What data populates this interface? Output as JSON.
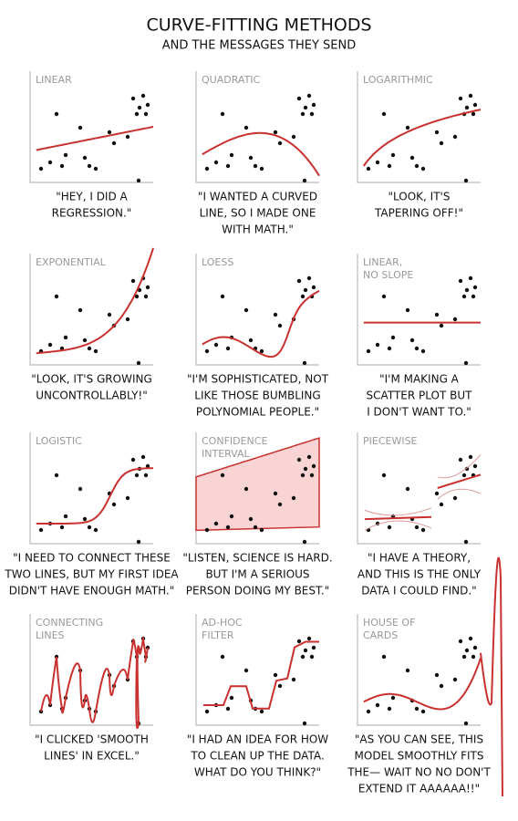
{
  "header": {
    "title": "CURVE-FITTING METHODS",
    "subtitle": "AND THE MESSAGES THEY SEND"
  },
  "panels": [
    {
      "label": [
        "LINEAR"
      ],
      "caption": [
        "\"HEY, I DID A",
        "REGRESSION.\""
      ]
    },
    {
      "label": [
        "QUADRATIC"
      ],
      "caption": [
        "\"I WANTED A CURVED",
        "LINE, SO I MADE ONE",
        "WITH MATH.\""
      ]
    },
    {
      "label": [
        "LOGARITHMIC"
      ],
      "caption": [
        "\"LOOK, IT'S",
        "TAPERING OFF!\""
      ]
    },
    {
      "label": [
        "EXPONENTIAL"
      ],
      "caption": [
        "\"LOOK, IT'S GROWING",
        "UNCONTROLLABLY!\""
      ]
    },
    {
      "label": [
        "LOESS"
      ],
      "caption": [
        "\"I'M SOPHISTICATED, NOT",
        "LIKE THOSE BUMBLING",
        "POLYNOMIAL PEOPLE.\""
      ]
    },
    {
      "label": [
        "LINEAR,",
        "NO SLOPE"
      ],
      "caption": [
        "\"I'M MAKING A",
        "SCATTER PLOT BUT",
        "I DON'T WANT TO.\""
      ]
    },
    {
      "label": [
        "LOGISTIC"
      ],
      "caption": [
        "\"I NEED TO CONNECT THESE",
        "TWO LINES, BUT MY FIRST IDEA",
        "DIDN'T HAVE ENOUGH MATH.\""
      ]
    },
    {
      "label": [
        "CONFIDENCE",
        "INTERVAL"
      ],
      "caption": [
        "\"LISTEN, SCIENCE IS HARD.",
        "BUT I'M A SERIOUS",
        "PERSON DOING MY BEST.\""
      ]
    },
    {
      "label": [
        "PIECEWISE"
      ],
      "caption": [
        "\"I HAVE A THEORY,",
        "AND THIS IS THE ONLY",
        "DATA I COULD FIND.\""
      ]
    },
    {
      "label": [
        "CONNECTING",
        "LINES"
      ],
      "caption": [
        "\"I CLICKED 'SMOOTH",
        "LINES' IN EXCEL.\""
      ]
    },
    {
      "label": [
        "AD-HOC",
        "FILTER"
      ],
      "caption": [
        "\"I HAD AN IDEA FOR HOW",
        "TO CLEAN UP THE DATA.",
        "WHAT DO YOU THINK?\""
      ]
    },
    {
      "label": [
        "HOUSE OF",
        "CARDS"
      ],
      "caption": [
        "\"AS YOU CAN SEE, THIS",
        "MODEL SMOOTHLY FITS",
        "THE— WAIT NO NO DON'T",
        "EXTEND IT AAAAAA!!\""
      ]
    }
  ]
}
